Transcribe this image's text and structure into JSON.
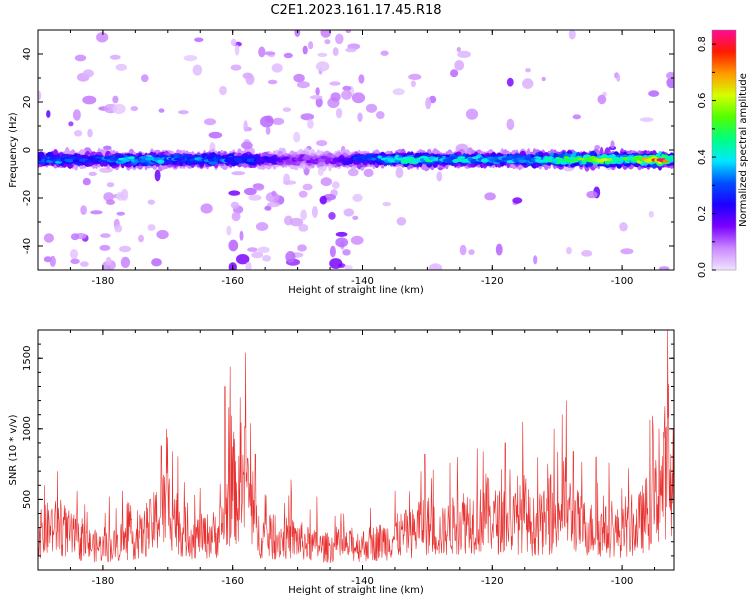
{
  "title": "C2E1.2023.161.17.45.R18",
  "chart_data": [
    {
      "type": "heatmap",
      "xlabel": "Height of straight line (km)",
      "ylabel": "Frequency (Hz)",
      "xlim": [
        -190,
        -92
      ],
      "ylim": [
        -50,
        50
      ],
      "x_ticks": [
        -180,
        -160,
        -140,
        -120,
        -100
      ],
      "y_ticks": [
        -40,
        -20,
        0,
        20,
        40
      ],
      "colorbar": {
        "label": "Normalized spectral amplitude",
        "range": [
          0,
          0.85
        ],
        "ticks": [
          0.0,
          0.2,
          0.4,
          0.6,
          0.8
        ],
        "colors": [
          "#f0e4ff",
          "#cc88ff",
          "#7a00ff",
          "#1c00ff",
          "#0050ff",
          "#00e8ff",
          "#00ff80",
          "#50ff00",
          "#d6ff00",
          "#ff9a00",
          "#ff1a00",
          "#ff0a9a"
        ]
      },
      "band_center_hz": -4,
      "band_halfwidth_hz": 3.5,
      "band_peak_amplitude": [
        [
          -190,
          0.3
        ],
        [
          -187,
          0.35
        ],
        [
          -184,
          0.3
        ],
        [
          -181,
          0.28
        ],
        [
          -178,
          0.33
        ],
        [
          -175,
          0.4
        ],
        [
          -172,
          0.38
        ],
        [
          -169,
          0.3
        ],
        [
          -166,
          0.32
        ],
        [
          -163,
          0.32
        ],
        [
          -160,
          0.3
        ],
        [
          -157,
          0.28
        ],
        [
          -154,
          0.2
        ],
        [
          -151,
          0.15
        ],
        [
          -148,
          0.14
        ],
        [
          -145,
          0.14
        ],
        [
          -142,
          0.22
        ],
        [
          -139,
          0.3
        ],
        [
          -136,
          0.38
        ],
        [
          -133,
          0.45
        ],
        [
          -130,
          0.42
        ],
        [
          -127,
          0.35
        ],
        [
          -124,
          0.38
        ],
        [
          -121,
          0.36
        ],
        [
          -118,
          0.35
        ],
        [
          -115,
          0.38
        ],
        [
          -112,
          0.42
        ],
        [
          -109,
          0.55
        ],
        [
          -106,
          0.5
        ],
        [
          -103,
          0.55
        ],
        [
          -100,
          0.45
        ],
        [
          -97,
          0.55
        ],
        [
          -94,
          0.8
        ],
        [
          -92,
          0.4
        ]
      ],
      "noise_regions": [
        {
          "x_range": [
            -185,
            -176
          ],
          "y_range": [
            -50,
            50
          ],
          "density": 0.7
        },
        {
          "x_range": [
            -160,
            -140
          ],
          "y_range": [
            -50,
            50
          ],
          "density": 1.0
        },
        {
          "x_range": [
            -190,
            -92
          ],
          "y_range": [
            -50,
            50
          ],
          "density": 0.25
        }
      ]
    },
    {
      "type": "line",
      "xlabel": "Height of straight line (km)",
      "ylabel": "SNR (10 * v/v)",
      "xlim": [
        -190,
        -92
      ],
      "ylim": [
        0,
        1700
      ],
      "x_ticks": [
        -180,
        -160,
        -140,
        -120,
        -100
      ],
      "y_ticks": [
        500,
        1000,
        1500
      ],
      "color": "#e8302f",
      "envelope": [
        [
          -190,
          300
        ],
        [
          -188,
          380
        ],
        [
          -186,
          350
        ],
        [
          -184,
          260
        ],
        [
          -182,
          220
        ],
        [
          -180,
          200
        ],
        [
          -178,
          220
        ],
        [
          -176,
          260
        ],
        [
          -174,
          300
        ],
        [
          -172,
          420
        ],
        [
          -171,
          520
        ],
        [
          -170,
          560
        ],
        [
          -169,
          480
        ],
        [
          -168,
          360
        ],
        [
          -166,
          290
        ],
        [
          -164,
          300
        ],
        [
          -162,
          330
        ],
        [
          -161,
          520
        ],
        [
          -160,
          760
        ],
        [
          -159,
          600
        ],
        [
          -158,
          820
        ],
        [
          -157,
          500
        ],
        [
          -156,
          320
        ],
        [
          -154,
          270
        ],
        [
          -152,
          280
        ],
        [
          -150,
          270
        ],
        [
          -148,
          220
        ],
        [
          -146,
          200
        ],
        [
          -144,
          200
        ],
        [
          -142,
          210
        ],
        [
          -140,
          220
        ],
        [
          -138,
          240
        ],
        [
          -136,
          270
        ],
        [
          -134,
          310
        ],
        [
          -132,
          330
        ],
        [
          -131,
          440
        ],
        [
          -130,
          400
        ],
        [
          -128,
          320
        ],
        [
          -126,
          390
        ],
        [
          -124,
          450
        ],
        [
          -122,
          420
        ],
        [
          -121,
          520
        ],
        [
          -120,
          440
        ],
        [
          -118,
          420
        ],
        [
          -116,
          430
        ],
        [
          -115,
          520
        ],
        [
          -114,
          380
        ],
        [
          -112,
          420
        ],
        [
          -110,
          430
        ],
        [
          -109,
          640
        ],
        [
          -108,
          500
        ],
        [
          -106,
          380
        ],
        [
          -104,
          350
        ],
        [
          -102,
          340
        ],
        [
          -100,
          330
        ],
        [
          -98,
          360
        ],
        [
          -96,
          520
        ],
        [
          -95,
          600
        ],
        [
          -94,
          700
        ],
        [
          -93,
          920
        ],
        [
          -92.5,
          640
        ],
        [
          -92,
          520
        ]
      ],
      "spikes": [
        [
          -189,
          600
        ],
        [
          -187,
          700
        ],
        [
          -184,
          560
        ],
        [
          -179,
          520
        ],
        [
          -177,
          560
        ],
        [
          -171,
          880
        ],
        [
          -170.2,
          1000
        ],
        [
          -169.3,
          840
        ],
        [
          -165,
          580
        ],
        [
          -161.2,
          1300
        ],
        [
          -160.4,
          1440
        ],
        [
          -158,
          1540
        ],
        [
          -156.5,
          820
        ],
        [
          -151,
          640
        ],
        [
          -147,
          520
        ],
        [
          -135,
          560
        ],
        [
          -131,
          700
        ],
        [
          -130.4,
          820
        ],
        [
          -126.5,
          760
        ],
        [
          -125.4,
          800
        ],
        [
          -122.3,
          860
        ],
        [
          -121.4,
          840
        ],
        [
          -118,
          900
        ],
        [
          -115.3,
          1050
        ],
        [
          -110.5,
          1000
        ],
        [
          -108.6,
          1200
        ],
        [
          -107.5,
          840
        ],
        [
          -104,
          800
        ],
        [
          -102,
          760
        ],
        [
          -99,
          720
        ],
        [
          -95.2,
          1000
        ],
        [
          -94.3,
          1000
        ],
        [
          -93.4,
          1160
        ],
        [
          -93,
          1700
        ],
        [
          -92.5,
          820
        ]
      ]
    }
  ]
}
